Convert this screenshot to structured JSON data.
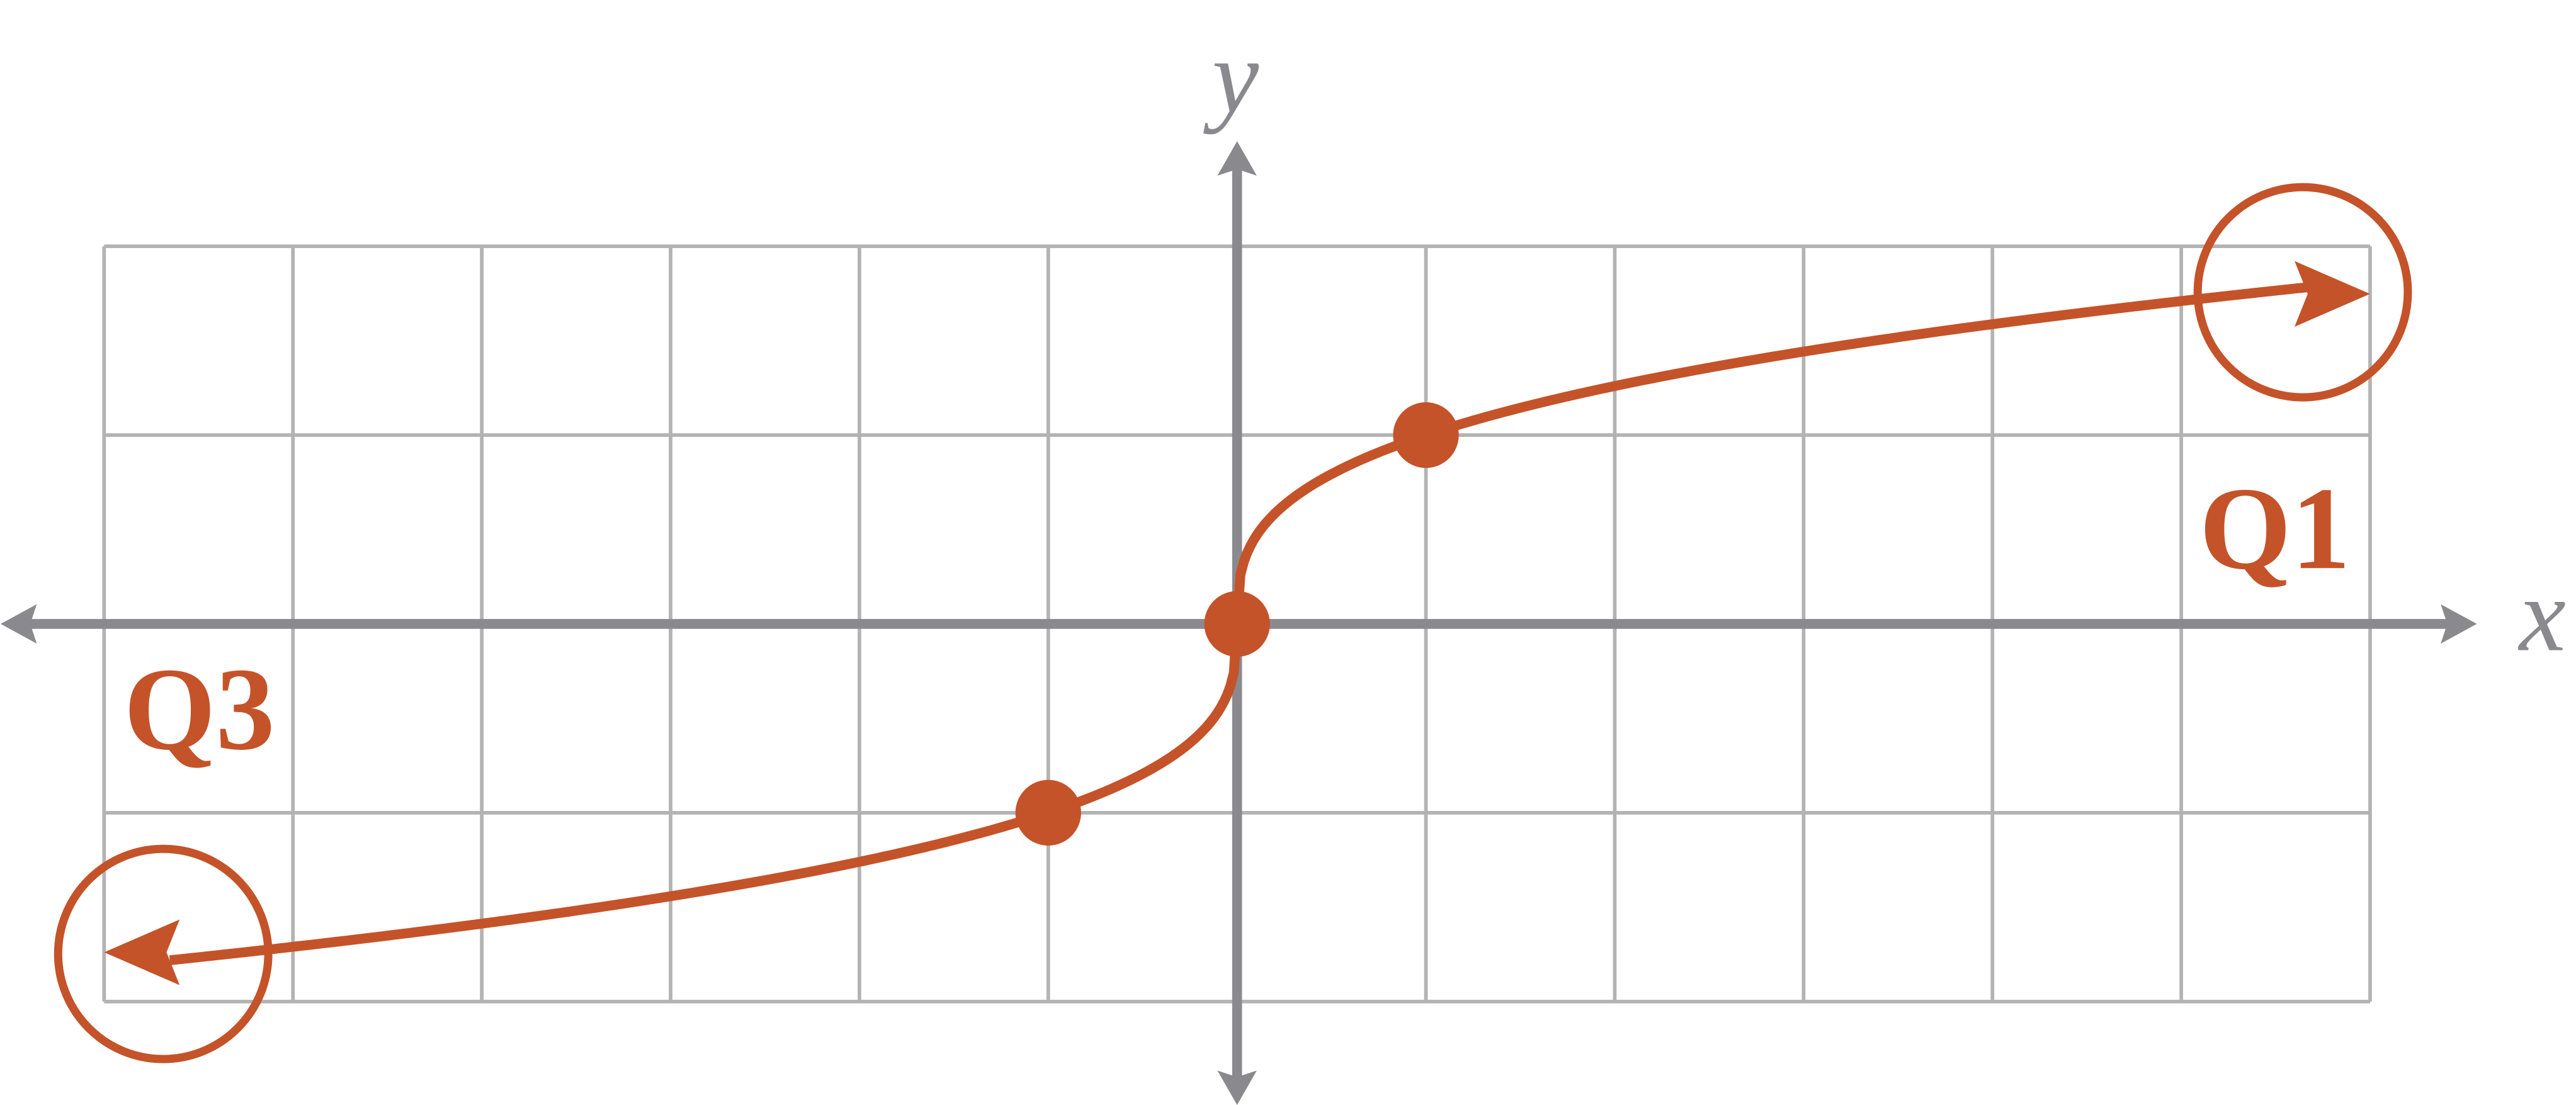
{
  "axes": {
    "x_label": "x",
    "y_label": "y"
  },
  "annotations": {
    "q1": "Q1",
    "q3": "Q3"
  }
}
